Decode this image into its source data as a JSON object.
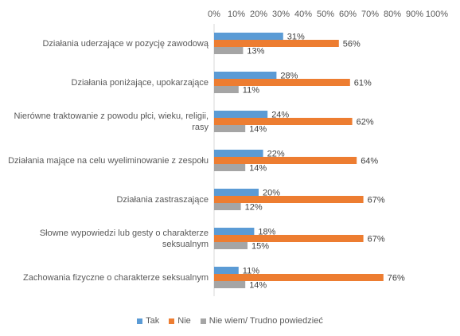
{
  "chart_data": {
    "type": "bar",
    "orientation": "horizontal",
    "title": "",
    "xlabel": "",
    "ylabel": "",
    "xlim": [
      0,
      100
    ],
    "x_ticks": [
      "0%",
      "10%",
      "20%",
      "30%",
      "40%",
      "50%",
      "60%",
      "70%",
      "80%",
      "90%",
      "100%"
    ],
    "x_axis_position": "top",
    "grid": false,
    "legend_position": "bottom",
    "categories": [
      "Działania uderzające w pozycję zawodową",
      "Działania poniżające, upokarzające",
      "Nierówne traktowanie z powodu płci, wieku, religii, rasy",
      "Działania mające na celu wyeliminowanie z zespołu",
      "Działania zastraszające",
      "Słowne wypowiedzi lub gesty o charakterze seksualnym",
      "Zachowania fizyczne o charakterze seksualnym"
    ],
    "series": [
      {
        "name": "Tak",
        "color": "#5B9BD5",
        "values": [
          31,
          28,
          24,
          22,
          20,
          18,
          11
        ],
        "labels": [
          "31%",
          "28%",
          "24%",
          "22%",
          "20%",
          "18%",
          "11%"
        ]
      },
      {
        "name": "Nie",
        "color": "#ED7D31",
        "values": [
          56,
          61,
          62,
          64,
          67,
          67,
          76
        ],
        "labels": [
          "56%",
          "61%",
          "62%",
          "64%",
          "67%",
          "67%",
          "76%"
        ]
      },
      {
        "name": "Nie wiem/ Trudno powiedzieć",
        "color": "#A5A5A5",
        "values": [
          13,
          11,
          14,
          14,
          12,
          15,
          14
        ],
        "labels": [
          "13%",
          "11%",
          "14%",
          "14%",
          "12%",
          "15%",
          "14%"
        ]
      }
    ]
  }
}
